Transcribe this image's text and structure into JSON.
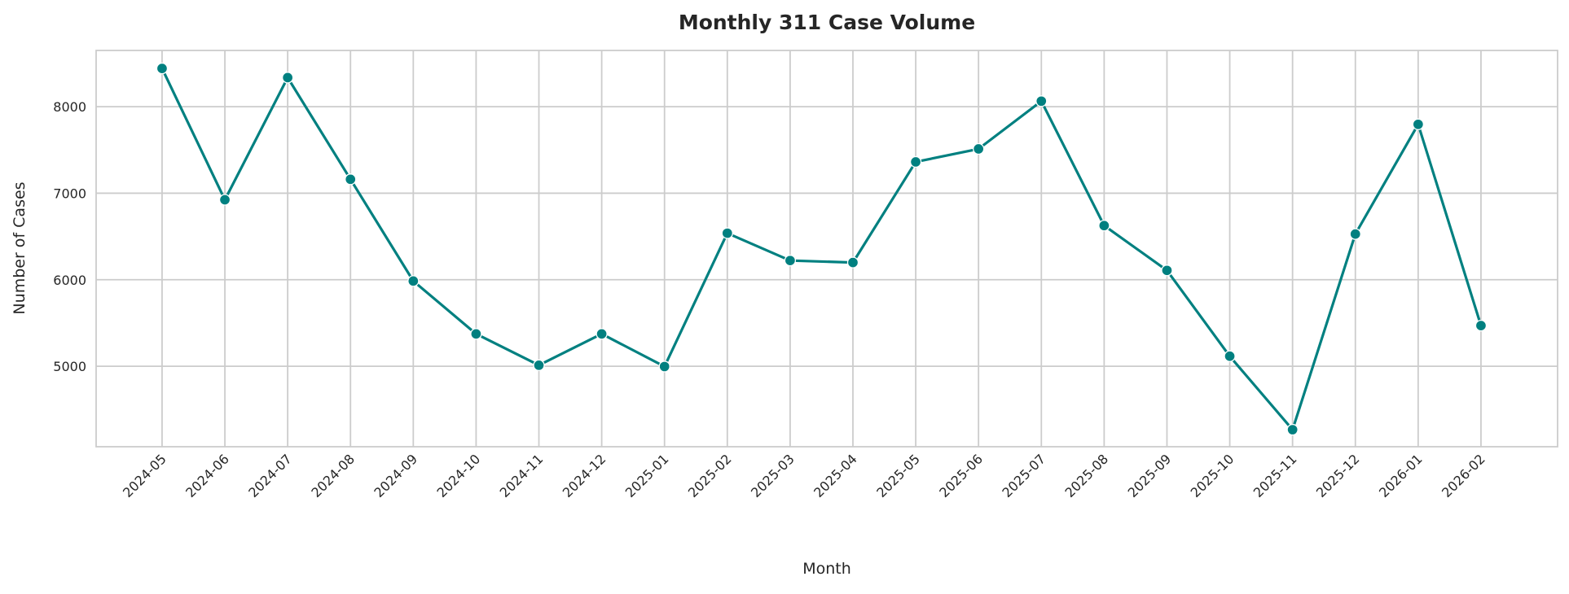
{
  "chart_data": {
    "type": "line",
    "title": "Monthly 311 Case Volume",
    "xlabel": "Month",
    "ylabel": "Number of Cases",
    "categories": [
      "2024-05",
      "2024-06",
      "2024-07",
      "2024-08",
      "2024-09",
      "2024-10",
      "2024-11",
      "2024-12",
      "2025-01",
      "2025-02",
      "2025-03",
      "2025-04",
      "2025-05",
      "2025-06",
      "2025-07",
      "2025-08",
      "2025-09",
      "2025-10",
      "2025-11",
      "2025-12",
      "2026-01",
      "2026-02"
    ],
    "values": [
      8442,
      6924,
      8336,
      7161,
      5985,
      5374,
      5012,
      5374,
      4997,
      6538,
      6222,
      6199,
      7362,
      7512,
      8064,
      6626,
      6108,
      5116,
      4267,
      6528,
      7796,
      5470
    ],
    "yticks": [
      5000,
      6000,
      7000,
      8000
    ],
    "ylim": [
      4070,
      8650
    ],
    "grid": true,
    "line_color": "#008080",
    "marker": "circle"
  }
}
